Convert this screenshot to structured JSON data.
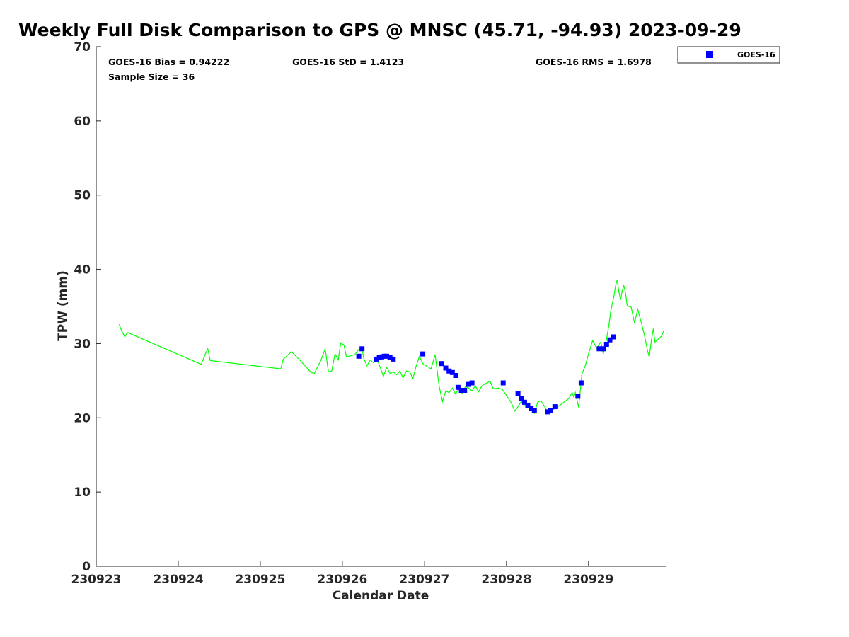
{
  "chart_data": {
    "type": "scatter",
    "title": "Weekly Full Disk Comparison to GPS @ MNSC (45.71, -94.93) 2023-09-29",
    "xlabel": "Calendar Date",
    "ylabel": "TPW (mm)",
    "xlim": [
      0,
      6.95
    ],
    "ylim": [
      0,
      70
    ],
    "x_tick_values": [
      0,
      1,
      2,
      3,
      4,
      5,
      6
    ],
    "x_tick_labels": [
      "230923",
      "230924",
      "230925",
      "230926",
      "230927",
      "230928",
      "230929"
    ],
    "y_tick_values": [
      0,
      10,
      20,
      30,
      40,
      50,
      60,
      70
    ],
    "y_tick_labels": [
      "0",
      "10",
      "20",
      "30",
      "40",
      "50",
      "60",
      "70"
    ],
    "grid": false,
    "legend_position": "top-right",
    "stats": {
      "bias": "GOES-16 Bias = 0.94222",
      "std": "GOES-16 StD = 1.4123",
      "rms": "GOES-16 RMS = 1.6978",
      "sample_size": "Sample Size = 36"
    },
    "series": [
      {
        "name": "GPS",
        "kind": "line",
        "color": "#00ff00",
        "points": [
          [
            0.28,
            32.6
          ],
          [
            0.31,
            31.7
          ],
          [
            0.35,
            30.9
          ],
          [
            0.38,
            31.5
          ],
          [
            1.28,
            27.2
          ],
          [
            1.33,
            28.6
          ],
          [
            1.36,
            29.3
          ],
          [
            1.39,
            27.7
          ],
          [
            2.25,
            26.6
          ],
          [
            2.28,
            27.9
          ],
          [
            2.35,
            28.6
          ],
          [
            2.38,
            28.9
          ],
          [
            2.48,
            27.8
          ],
          [
            2.62,
            26.1
          ],
          [
            2.66,
            26.0
          ],
          [
            2.74,
            27.8
          ],
          [
            2.79,
            29.3
          ],
          [
            2.83,
            26.2
          ],
          [
            2.87,
            26.3
          ],
          [
            2.91,
            28.6
          ],
          [
            2.95,
            27.8
          ],
          [
            2.98,
            30.1
          ],
          [
            3.02,
            29.8
          ],
          [
            3.05,
            28.2
          ],
          [
            3.15,
            28.5
          ],
          [
            3.2,
            29.2
          ],
          [
            3.24,
            29.3
          ],
          [
            3.26,
            28.0
          ],
          [
            3.3,
            27.0
          ],
          [
            3.34,
            27.8
          ],
          [
            3.38,
            27.4
          ],
          [
            3.42,
            28.0
          ],
          [
            3.46,
            26.8
          ],
          [
            3.5,
            25.6
          ],
          [
            3.54,
            26.8
          ],
          [
            3.58,
            26.0
          ],
          [
            3.62,
            26.2
          ],
          [
            3.66,
            25.8
          ],
          [
            3.7,
            26.3
          ],
          [
            3.74,
            25.4
          ],
          [
            3.78,
            26.3
          ],
          [
            3.82,
            26.2
          ],
          [
            3.86,
            25.3
          ],
          [
            3.9,
            27.0
          ],
          [
            3.94,
            28.3
          ],
          [
            3.98,
            27.3
          ],
          [
            4.08,
            26.6
          ],
          [
            4.13,
            28.5
          ],
          [
            4.18,
            24.2
          ],
          [
            4.22,
            22.2
          ],
          [
            4.26,
            23.6
          ],
          [
            4.3,
            23.4
          ],
          [
            4.34,
            24.0
          ],
          [
            4.38,
            23.2
          ],
          [
            4.42,
            24.0
          ],
          [
            4.46,
            23.3
          ],
          [
            4.5,
            24.2
          ],
          [
            4.54,
            24.0
          ],
          [
            4.58,
            23.6
          ],
          [
            4.62,
            24.3
          ],
          [
            4.66,
            23.5
          ],
          [
            4.7,
            24.3
          ],
          [
            4.74,
            24.6
          ],
          [
            4.8,
            24.9
          ],
          [
            4.84,
            23.9
          ],
          [
            4.9,
            24.0
          ],
          [
            4.95,
            23.8
          ],
          [
            5.0,
            23.0
          ],
          [
            5.06,
            22.0
          ],
          [
            5.1,
            20.9
          ],
          [
            5.14,
            21.5
          ],
          [
            5.18,
            22.2
          ],
          [
            5.22,
            21.6
          ],
          [
            5.26,
            21.8
          ],
          [
            5.3,
            21.4
          ],
          [
            5.34,
            20.6
          ],
          [
            5.38,
            22.1
          ],
          [
            5.42,
            22.3
          ],
          [
            5.46,
            21.6
          ],
          [
            5.5,
            20.8
          ],
          [
            5.54,
            21.0
          ],
          [
            5.58,
            21.2
          ],
          [
            5.64,
            21.6
          ],
          [
            5.7,
            22.1
          ],
          [
            5.76,
            22.6
          ],
          [
            5.8,
            23.4
          ],
          [
            5.82,
            22.8
          ],
          [
            5.84,
            23.4
          ],
          [
            5.88,
            21.4
          ],
          [
            5.92,
            25.9
          ],
          [
            5.96,
            27.0
          ],
          [
            6.0,
            28.6
          ],
          [
            6.05,
            30.4
          ],
          [
            6.1,
            29.4
          ],
          [
            6.15,
            30.2
          ],
          [
            6.18,
            28.6
          ],
          [
            6.22,
            30.6
          ],
          [
            6.25,
            32.6
          ],
          [
            6.27,
            34.3
          ],
          [
            6.29,
            35.4
          ],
          [
            6.31,
            36.4
          ],
          [
            6.33,
            37.8
          ],
          [
            6.35,
            38.6
          ],
          [
            6.37,
            37.0
          ],
          [
            6.39,
            35.9
          ],
          [
            6.41,
            37.1
          ],
          [
            6.43,
            37.8
          ],
          [
            6.45,
            36.9
          ],
          [
            6.47,
            35.2
          ],
          [
            6.49,
            35.0
          ],
          [
            6.52,
            34.9
          ],
          [
            6.56,
            32.8
          ],
          [
            6.6,
            34.6
          ],
          [
            6.64,
            33.0
          ],
          [
            6.68,
            31.2
          ],
          [
            6.72,
            29.0
          ],
          [
            6.74,
            28.2
          ],
          [
            6.77,
            30.7
          ],
          [
            6.79,
            32.0
          ],
          [
            6.81,
            30.2
          ],
          [
            6.85,
            30.6
          ],
          [
            6.89,
            31.0
          ],
          [
            6.92,
            31.8
          ]
        ]
      },
      {
        "name": "GOES-16",
        "kind": "marker",
        "color": "#0000ff",
        "points": [
          [
            3.2,
            28.3
          ],
          [
            3.24,
            29.3
          ],
          [
            3.41,
            27.9
          ],
          [
            3.45,
            28.1
          ],
          [
            3.48,
            28.2
          ],
          [
            3.51,
            28.3
          ],
          [
            3.54,
            28.3
          ],
          [
            3.58,
            28.1
          ],
          [
            3.62,
            27.9
          ],
          [
            3.98,
            28.6
          ],
          [
            4.21,
            27.3
          ],
          [
            4.26,
            26.7
          ],
          [
            4.3,
            26.3
          ],
          [
            4.34,
            26.1
          ],
          [
            4.38,
            25.7
          ],
          [
            4.41,
            24.1
          ],
          [
            4.45,
            23.7
          ],
          [
            4.49,
            23.7
          ],
          [
            4.54,
            24.5
          ],
          [
            4.58,
            24.7
          ],
          [
            4.96,
            24.7
          ],
          [
            5.14,
            23.3
          ],
          [
            5.18,
            22.6
          ],
          [
            5.22,
            22.1
          ],
          [
            5.26,
            21.6
          ],
          [
            5.3,
            21.3
          ],
          [
            5.34,
            21.0
          ],
          [
            5.5,
            20.8
          ],
          [
            5.54,
            21.0
          ],
          [
            5.59,
            21.5
          ],
          [
            5.87,
            22.9
          ],
          [
            5.91,
            24.7
          ],
          [
            6.13,
            29.3
          ],
          [
            6.18,
            29.3
          ],
          [
            6.22,
            29.9
          ],
          [
            6.26,
            30.5
          ],
          [
            6.3,
            30.9
          ]
        ]
      }
    ]
  },
  "legend": {
    "entries": [
      {
        "label": "GOES-16",
        "color": "#0000ff"
      }
    ]
  }
}
